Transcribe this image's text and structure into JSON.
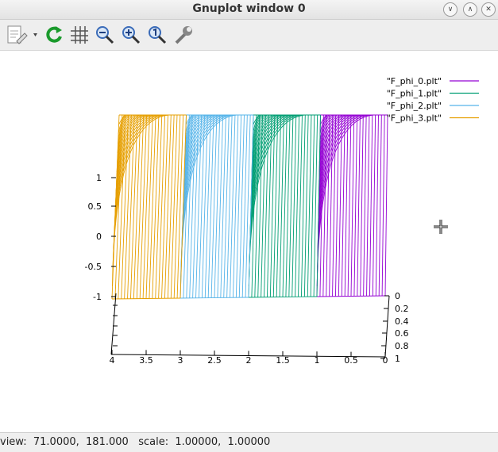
{
  "window": {
    "title": "Gnuplot window 0"
  },
  "toolbar": {
    "buttons": [
      "export-icon",
      "replot-icon",
      "grid-icon",
      "zoom-out-icon",
      "zoom-in-icon",
      "zoom-reset-icon",
      "settings-icon"
    ]
  },
  "status": {
    "view_label": "view:",
    "view_values": "71.0000,  181.000",
    "scale_label": "scale:",
    "scale_values": "1.00000,  1.00000"
  },
  "chart_data": {
    "type": "surface",
    "z_ticks": [
      "1",
      "0.5",
      "0",
      "-0.5",
      "-1"
    ],
    "x_ticks": [
      "4",
      "3.5",
      "3",
      "2.5",
      "2",
      "1.5",
      "1",
      "0.5",
      "0"
    ],
    "y_ticks": [
      "0",
      "0.2",
      "0.4",
      "0.6",
      "0.8",
      "1"
    ],
    "series": [
      {
        "name": "\"F_phi_0.plt\"",
        "color": "#9400d3",
        "x_range": [
          0,
          1
        ]
      },
      {
        "name": "\"F_phi_1.plt\"",
        "color": "#009e73",
        "x_range": [
          1,
          2
        ]
      },
      {
        "name": "\"F_phi_2.plt\"",
        "color": "#56b4e9",
        "x_range": [
          2,
          3
        ]
      },
      {
        "name": "\"F_phi_3.plt\"",
        "color": "#e69f00",
        "x_range": [
          3,
          4
        ]
      }
    ]
  }
}
